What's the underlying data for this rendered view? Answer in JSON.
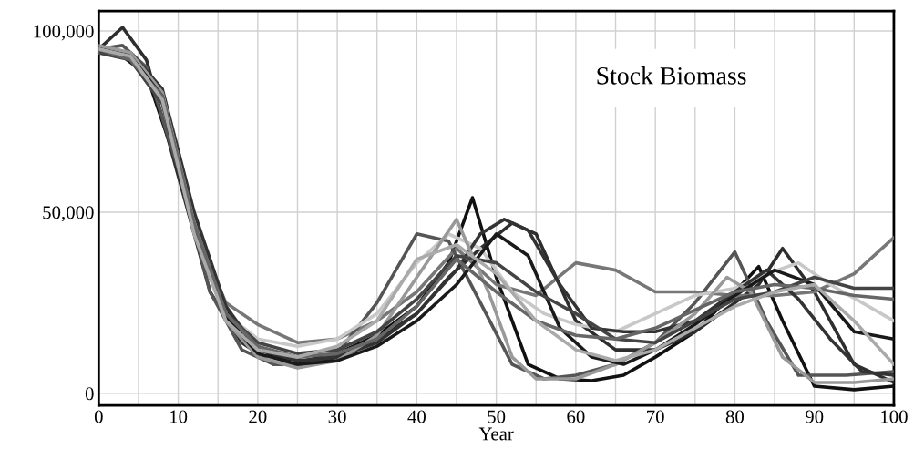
{
  "chart_data": {
    "type": "line",
    "xlabel": "Year",
    "annotations": [
      "Stock Biomass"
    ],
    "xlim": [
      0,
      100
    ],
    "ylim": [
      -3300,
      105500
    ],
    "xticks": [
      0,
      {
        "value": 5,
        "label": null
      },
      10,
      {
        "value": 15,
        "label": null
      },
      20,
      {
        "value": 25,
        "label": null
      },
      30,
      {
        "value": 35,
        "label": null
      },
      40,
      {
        "value": 45,
        "label": null
      },
      50,
      {
        "value": 55,
        "label": null
      },
      60,
      {
        "value": 65,
        "label": null
      },
      70,
      {
        "value": 75,
        "label": null
      },
      80,
      {
        "value": 85,
        "label": null
      },
      90,
      {
        "value": 95,
        "label": null
      },
      100
    ],
    "yticks": [
      {
        "value": 0,
        "label": "0"
      },
      {
        "value": 50000,
        "label": "50,000"
      },
      {
        "value": 100000,
        "label": "100,000"
      }
    ],
    "grid": true,
    "legend": false,
    "marker": "none",
    "line_style": "solid",
    "series": [
      {
        "color": "#111111",
        "x": [
          0,
          3,
          6,
          10,
          14,
          18,
          22,
          26,
          30,
          35,
          40,
          44,
          47,
          50,
          54,
          58,
          62,
          66,
          70,
          75,
          80,
          83,
          86,
          90,
          95,
          100
        ],
        "values": [
          95000,
          93000,
          88000,
          62000,
          32000,
          16000,
          10000,
          9000,
          11000,
          16000,
          24000,
          36000,
          54000,
          32000,
          8000,
          4000,
          3500,
          5000,
          10000,
          17000,
          28000,
          35000,
          20000,
          2000,
          1000,
          2000
        ]
      },
      {
        "color": "#2e2e2e",
        "x": [
          0,
          3,
          6,
          10,
          14,
          18,
          22,
          26,
          30,
          35,
          40,
          44,
          48,
          52,
          55,
          60,
          65,
          70,
          75,
          80,
          83,
          86,
          90,
          95,
          100
        ],
        "values": [
          95000,
          101000,
          92000,
          60000,
          28000,
          14000,
          8000,
          8000,
          10000,
          15000,
          22000,
          32000,
          40000,
          47000,
          44000,
          20000,
          12000,
          12000,
          17000,
          25000,
          30000,
          40000,
          28000,
          8000,
          3000
        ]
      },
      {
        "color": "#777777",
        "x": [
          0,
          4,
          8,
          12,
          16,
          20,
          25,
          30,
          35,
          40,
          45,
          50,
          55,
          60,
          65,
          70,
          75,
          80,
          85,
          90,
          95,
          100
        ],
        "values": [
          95000,
          92000,
          80000,
          45000,
          25000,
          19000,
          14000,
          15000,
          20000,
          28000,
          40000,
          30000,
          27000,
          36000,
          34000,
          28000,
          28000,
          27000,
          27000,
          28000,
          33000,
          43000
        ]
      },
      {
        "color": "#555555",
        "x": [
          0,
          3,
          6,
          10,
          14,
          18,
          22,
          26,
          30,
          35,
          40,
          44,
          48,
          52,
          56,
          60,
          65,
          70,
          75,
          80,
          84,
          88,
          94,
          100
        ],
        "values": [
          95000,
          96000,
          90000,
          62000,
          28000,
          12000,
          8000,
          8000,
          11000,
          25000,
          44000,
          42000,
          25000,
          8000,
          4000,
          5000,
          8000,
          14000,
          25000,
          39000,
          20000,
          5000,
          5000,
          6000
        ]
      },
      {
        "color": "#c8c8c8",
        "x": [
          0,
          4,
          8,
          12,
          16,
          20,
          25,
          30,
          35,
          40,
          44,
          48,
          52,
          56,
          60,
          65,
          70,
          75,
          80,
          84,
          88,
          92,
          96,
          100
        ],
        "values": [
          94000,
          93000,
          82000,
          48000,
          22000,
          15000,
          13000,
          15000,
          22000,
          36000,
          44000,
          40000,
          28000,
          22000,
          19000,
          17000,
          22000,
          27000,
          29000,
          33000,
          36000,
          30000,
          25000,
          20000
        ]
      },
      {
        "color": "#333333",
        "x": [
          0,
          4,
          8,
          12,
          16,
          20,
          25,
          30,
          35,
          40,
          45,
          48,
          51,
          54,
          58,
          62,
          66,
          70,
          75,
          80,
          84,
          88,
          92,
          96,
          100
        ],
        "values": [
          95000,
          94000,
          84000,
          50000,
          24000,
          12000,
          9000,
          10000,
          14000,
          22000,
          34000,
          44000,
          48000,
          45000,
          30000,
          18000,
          17000,
          17000,
          20000,
          28000,
          34000,
          26000,
          15000,
          6000,
          5000
        ]
      },
      {
        "color": "#999999",
        "x": [
          0,
          4,
          8,
          12,
          16,
          20,
          25,
          30,
          35,
          40,
          45,
          49,
          52,
          55,
          60,
          65,
          70,
          75,
          79,
          82,
          86,
          90,
          95,
          100
        ],
        "values": [
          96000,
          94000,
          83000,
          47000,
          20000,
          10000,
          7000,
          9000,
          16000,
          32000,
          48000,
          28000,
          10000,
          4000,
          4000,
          8000,
          14000,
          22000,
          32000,
          28000,
          10000,
          3000,
          3000,
          4000
        ]
      },
      {
        "color": "#1a1a1a",
        "x": [
          0,
          4,
          8,
          12,
          16,
          20,
          25,
          30,
          35,
          40,
          45,
          50,
          54,
          58,
          62,
          66,
          70,
          75,
          80,
          85,
          90,
          95,
          100
        ],
        "values": [
          95000,
          93000,
          82000,
          46000,
          21000,
          11000,
          8000,
          9000,
          13000,
          20000,
          30000,
          44000,
          38000,
          18000,
          10000,
          8000,
          12000,
          19000,
          27000,
          34000,
          30000,
          17000,
          15000
        ]
      },
      {
        "color": "#444444",
        "x": [
          0,
          4,
          8,
          12,
          16,
          20,
          25,
          30,
          35,
          40,
          45,
          50,
          55,
          60,
          65,
          70,
          75,
          80,
          85,
          90,
          95,
          100
        ],
        "values": [
          94000,
          92000,
          80000,
          45000,
          22000,
          14000,
          11000,
          12000,
          17000,
          26000,
          38000,
          36000,
          28000,
          22000,
          15000,
          14000,
          20000,
          26000,
          28000,
          32000,
          29000,
          29000
        ]
      },
      {
        "color": "#666666",
        "x": [
          0,
          4,
          8,
          12,
          16,
          20,
          25,
          30,
          35,
          40,
          45,
          50,
          55,
          60,
          65,
          70,
          75,
          80,
          85,
          90,
          95,
          100
        ],
        "values": [
          95000,
          92000,
          82000,
          47000,
          22000,
          13000,
          10000,
          11000,
          15000,
          24000,
          37000,
          28000,
          20000,
          16000,
          15000,
          18000,
          23000,
          28000,
          30000,
          29000,
          27000,
          26000
        ]
      },
      {
        "color": "#aaaaaa",
        "x": [
          0,
          4,
          8,
          12,
          16,
          20,
          25,
          30,
          35,
          40,
          45,
          50,
          55,
          60,
          65,
          70,
          75,
          80,
          85,
          90,
          95,
          100
        ],
        "values": [
          95000,
          93000,
          81000,
          44000,
          20000,
          12000,
          10000,
          13000,
          20000,
          37000,
          41000,
          33000,
          20000,
          12000,
          9000,
          12000,
          18000,
          24000,
          28000,
          30000,
          20000,
          8000
        ]
      }
    ]
  }
}
